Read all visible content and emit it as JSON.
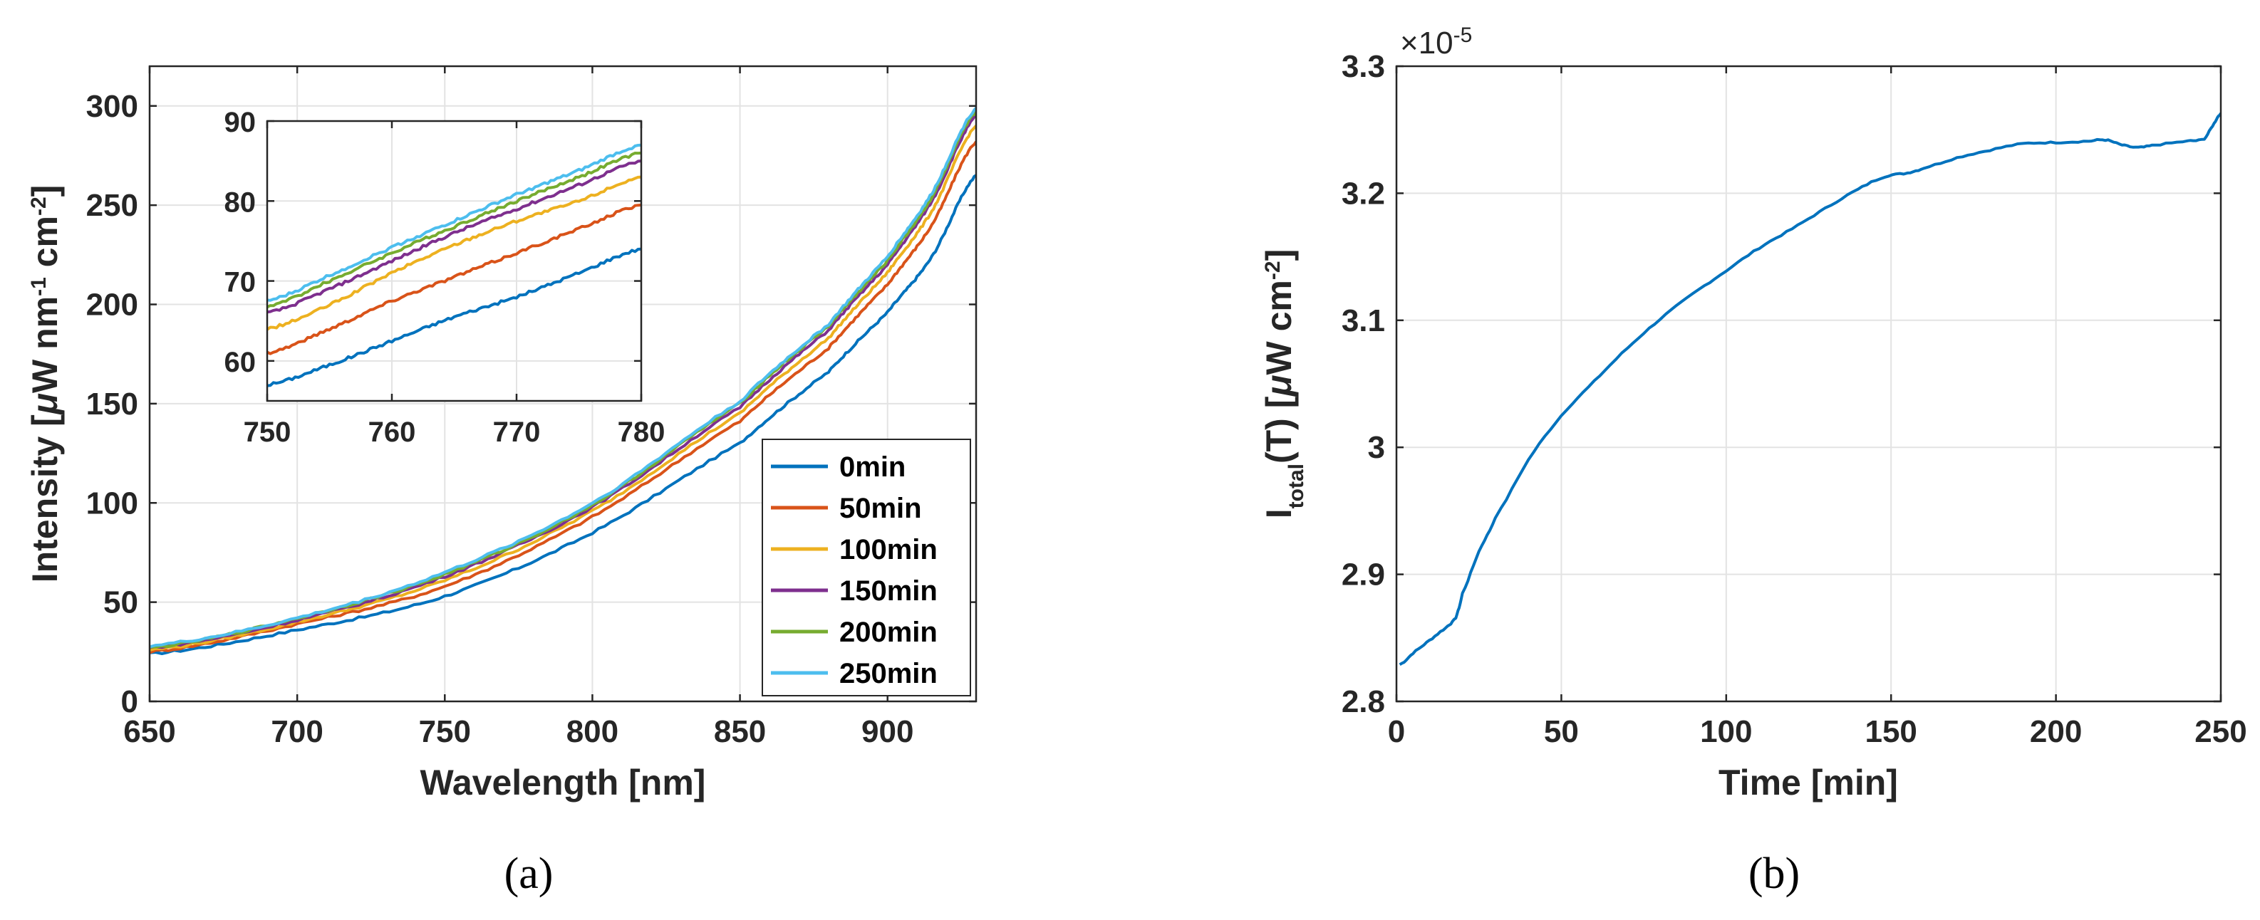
{
  "chart_data": [
    {
      "id": "a",
      "type": "line",
      "caption": "(a)",
      "xlabel": "Wavelength [nm]",
      "ylabel_parts": [
        "Intensity [",
        "μ",
        "W nm",
        "-1",
        " cm",
        "-2",
        "]"
      ],
      "xlim": [
        650,
        930
      ],
      "ylim": [
        0,
        320
      ],
      "xticks": [
        650,
        700,
        750,
        800,
        850,
        900
      ],
      "yticks": [
        0,
        50,
        100,
        150,
        200,
        250,
        300
      ],
      "grid": true,
      "legend_position": "bottom-right",
      "series": [
        {
          "name": "0min",
          "color": "#0072BD",
          "x": [
            650,
            700,
            750,
            800,
            850,
            880,
            900,
            915,
            930
          ],
          "values": [
            24,
            36,
            53,
            85,
            130,
            166,
            196,
            224,
            265
          ]
        },
        {
          "name": "50min",
          "color": "#D95319",
          "x": [
            650,
            700,
            750,
            800,
            850,
            880,
            900,
            915,
            930
          ],
          "values": [
            25,
            39,
            58,
            93,
            141,
            178,
            210,
            240,
            282
          ]
        },
        {
          "name": "100min",
          "color": "#EDB120",
          "x": [
            650,
            700,
            750,
            800,
            850,
            880,
            900,
            915,
            930
          ],
          "values": [
            26,
            40,
            61,
            96,
            145,
            183,
            216,
            247,
            290
          ]
        },
        {
          "name": "150min",
          "color": "#7E2F8E",
          "x": [
            650,
            700,
            750,
            800,
            850,
            880,
            900,
            915,
            930
          ],
          "values": [
            27,
            41,
            63,
            98,
            148,
            187,
            220,
            252,
            295
          ]
        },
        {
          "name": "200min",
          "color": "#77AC30",
          "x": [
            650,
            700,
            750,
            800,
            850,
            880,
            900,
            915,
            930
          ],
          "values": [
            27,
            42,
            64,
            99,
            150,
            189,
            222,
            254,
            297
          ]
        },
        {
          "name": "250min",
          "color": "#4DBEEE",
          "x": [
            650,
            700,
            750,
            800,
            850,
            880,
            900,
            915,
            930
          ],
          "values": [
            28,
            42,
            65,
            100,
            151,
            190,
            224,
            256,
            299
          ]
        }
      ],
      "inset": {
        "xlim": [
          750,
          780
        ],
        "ylim": [
          55,
          90
        ],
        "xticks": [
          750,
          760,
          770,
          780
        ],
        "yticks": [
          60,
          70,
          80,
          90
        ],
        "x": [
          750,
          755,
          760,
          765,
          770,
          775,
          780
        ],
        "series_values": [
          [
            57,
            59.5,
            62.5,
            65.5,
            68,
            71,
            74
          ],
          [
            61,
            64,
            67.5,
            70.5,
            73.5,
            76.5,
            79.5
          ],
          [
            64,
            67,
            71,
            74.5,
            77.5,
            80,
            83
          ],
          [
            66,
            69,
            72.5,
            76,
            79,
            82,
            85
          ],
          [
            66.8,
            70,
            73.5,
            76.8,
            80,
            83,
            86
          ],
          [
            67.5,
            70.7,
            74.2,
            77.5,
            80.8,
            83.8,
            87
          ]
        ]
      }
    },
    {
      "id": "b",
      "type": "line",
      "caption": "(b)",
      "xlabel": "Time [min]",
      "ylabel_parts": [
        "I",
        "total",
        "(T) [",
        "μ",
        "W cm",
        "-2",
        "]"
      ],
      "exponent_label": [
        "×10",
        "-5"
      ],
      "xlim": [
        0,
        250
      ],
      "ylim": [
        2.8,
        3.3
      ],
      "xticks": [
        0,
        50,
        100,
        150,
        200,
        250
      ],
      "ytick_labels": [
        "2.8",
        "2.9",
        "3",
        "3.1",
        "3.2",
        "3.3"
      ],
      "yticks": [
        2.8,
        2.9,
        3.0,
        3.1,
        3.2,
        3.3
      ],
      "grid": true,
      "series": [
        {
          "name": "I_total",
          "color": "#0072BD",
          "x": [
            1,
            5,
            10,
            15,
            18,
            20,
            25,
            30,
            40,
            50,
            60,
            70,
            80,
            90,
            100,
            110,
            120,
            130,
            140,
            148,
            155,
            160,
            170,
            180,
            190,
            200,
            210,
            215,
            220,
            225,
            230,
            240,
            245,
            248,
            250
          ],
          "values": [
            2.829,
            2.838,
            2.848,
            2.858,
            2.866,
            2.885,
            2.918,
            2.945,
            2.99,
            3.025,
            3.052,
            3.078,
            3.101,
            3.121,
            3.139,
            3.157,
            3.172,
            3.188,
            3.203,
            3.213,
            3.216,
            3.22,
            3.228,
            3.234,
            3.239,
            3.24,
            3.241,
            3.242,
            3.238,
            3.236,
            3.238,
            3.241,
            3.243,
            3.255,
            3.263
          ]
        }
      ]
    }
  ]
}
